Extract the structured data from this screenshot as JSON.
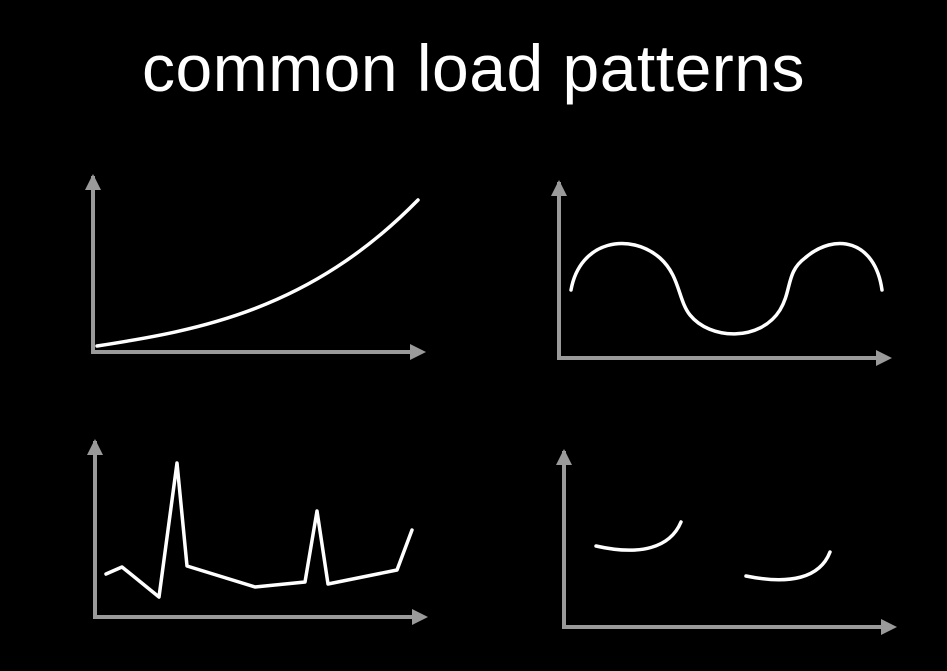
{
  "title": "common load patterns",
  "colors": {
    "background": "#000000",
    "axis": "#9a9a9a",
    "curve": "#ffffff"
  },
  "panels": [
    {
      "pattern": "steadily increasing load"
    },
    {
      "pattern": "cyclical load"
    },
    {
      "pattern": "spiky load"
    },
    {
      "pattern": "intermittent load"
    }
  ]
}
